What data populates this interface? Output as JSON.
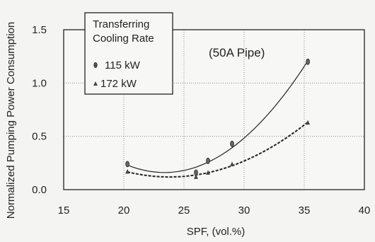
{
  "chart_data": {
    "type": "scatter",
    "title": "",
    "xlabel": "SPF, (vol.%)",
    "ylabel": "Normalized Pumping Power Consumption",
    "xlim": [
      15,
      40
    ],
    "ylim": [
      0.0,
      1.5
    ],
    "xticks": [
      15,
      20,
      25,
      30,
      35,
      40
    ],
    "yticks": [
      0.0,
      0.5,
      1.0,
      1.5
    ],
    "xtick_labels": [
      "15",
      "20",
      "25",
      "30",
      "35",
      "40"
    ],
    "ytick_labels": [
      "0.0",
      "0.5",
      "1.0",
      "1.5"
    ],
    "grid": "dotted",
    "legend": {
      "title_lines": [
        "Transferring",
        "Cooling Rate"
      ],
      "placement": "top-left"
    },
    "annotation": "(50A Pipe)",
    "series": [
      {
        "name": "115 kW",
        "marker": "ellipse",
        "line": "solid",
        "points": [
          {
            "x": 20.3,
            "y": 0.24
          },
          {
            "x": 26.0,
            "y": 0.16
          },
          {
            "x": 27.0,
            "y": 0.27
          },
          {
            "x": 29.0,
            "y": 0.43
          },
          {
            "x": 35.3,
            "y": 1.2
          }
        ]
      },
      {
        "name": "172 kW",
        "marker": "triangle",
        "line": "dashed",
        "points": [
          {
            "x": 20.3,
            "y": 0.17
          },
          {
            "x": 26.0,
            "y": 0.12
          },
          {
            "x": 27.0,
            "y": 0.16
          },
          {
            "x": 29.0,
            "y": 0.24
          },
          {
            "x": 35.3,
            "y": 0.63
          }
        ]
      }
    ]
  }
}
